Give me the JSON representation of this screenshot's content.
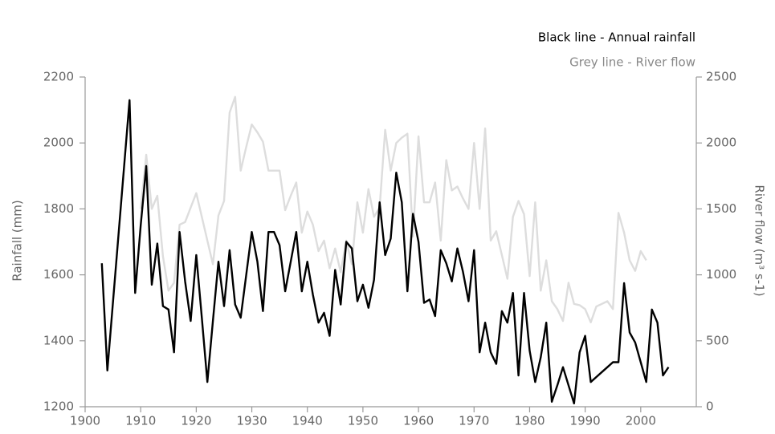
{
  "chart_data": {
    "type": "line",
    "legend_lines": [
      "Black line - Annual rainfall",
      "Grey line - River flow"
    ],
    "ylabel": "Rainfall (mm)",
    "y2label": "River flow (m³ s-1)",
    "x": [
      1903,
      1904,
      1905,
      1906,
      1907,
      1908,
      1909,
      1910,
      1911,
      1912,
      1913,
      1914,
      1915,
      1916,
      1917,
      1918,
      1919,
      1920,
      1921,
      1922,
      1923,
      1924,
      1925,
      1926,
      1927,
      1928,
      1929,
      1930,
      1931,
      1932,
      1933,
      1934,
      1935,
      1936,
      1937,
      1938,
      1939,
      1940,
      1941,
      1942,
      1943,
      1944,
      1945,
      1946,
      1947,
      1948,
      1949,
      1950,
      1951,
      1952,
      1953,
      1954,
      1955,
      1956,
      1957,
      1958,
      1959,
      1960,
      1961,
      1962,
      1963,
      1964,
      1965,
      1966,
      1967,
      1968,
      1969,
      1970,
      1971,
      1972,
      1973,
      1974,
      1975,
      1976,
      1977,
      1978,
      1979,
      1980,
      1981,
      1982,
      1983,
      1984,
      1985,
      1986,
      1987,
      1988,
      1989,
      1990,
      1991,
      1992,
      1993,
      1994,
      1995,
      1996,
      1997,
      1998,
      1999,
      2000,
      2001,
      2002,
      2003,
      2004,
      2005
    ],
    "series": [
      {
        "name": "River flow",
        "color": "#dddddd",
        "axis": "y2",
        "values": [
          null,
          null,
          null,
          null,
          null,
          null,
          null,
          1500,
          1910,
          1500,
          1600,
          1140,
          880,
          940,
          1380,
          1400,
          1510,
          1620,
          1440,
          1260,
          1080,
          1450,
          1560,
          2230,
          2350,
          1790,
          1970,
          2140,
          2080,
          2010,
          1790,
          1790,
          1790,
          1490,
          1600,
          1700,
          1320,
          1480,
          1380,
          1180,
          1260,
          1050,
          1200,
          1020,
          1260,
          1080,
          1550,
          1320,
          1650,
          1440,
          1510,
          2100,
          1790,
          2000,
          2040,
          2070,
          1290,
          2050,
          1550,
          1550,
          1700,
          1260,
          1870,
          1640,
          1670,
          1580,
          1500,
          2000,
          1500,
          2110,
          1260,
          1330,
          1150,
          970,
          1440,
          1560,
          1460,
          990,
          1550,
          880,
          1110,
          800,
          740,
          650,
          940,
          780,
          770,
          740,
          640,
          760,
          780,
          800,
          740,
          1470,
          1320,
          1110,
          1030,
          1180,
          1110,
          null,
          null,
          null,
          null
        ]
      },
      {
        "name": "Annual rainfall",
        "color": "#000000",
        "values": [
          1635,
          1310,
          1515,
          1720,
          1925,
          2130,
          1545,
          1750,
          1930,
          1570,
          1695,
          1505,
          1495,
          1365,
          1730,
          1580,
          1460,
          1660,
          1470,
          1275,
          1460,
          1640,
          1505,
          1675,
          1510,
          1470,
          1600,
          1730,
          1640,
          1490,
          1730,
          1730,
          1690,
          1550,
          1640,
          1730,
          1550,
          1640,
          1540,
          1455,
          1485,
          1415,
          1615,
          1510,
          1700,
          1680,
          1520,
          1570,
          1500,
          1585,
          1820,
          1660,
          1710,
          1910,
          1820,
          1550,
          1785,
          1700,
          1515,
          1525,
          1475,
          1675,
          1635,
          1580,
          1680,
          1610,
          1520,
          1675,
          1365,
          1455,
          1365,
          1330,
          1490,
          1455,
          1545,
          1295,
          1545,
          1370,
          1275,
          1350,
          1455,
          1215,
          1265,
          1320,
          1265,
          1210,
          1365,
          1415,
          1275,
          1290,
          1305,
          1320,
          1335,
          1335,
          1575,
          1425,
          1395,
          1335,
          1275,
          1495,
          1455,
          1295,
          1320
        ]
      }
    ],
    "xlim": [
      1900,
      2010
    ],
    "xticks": [
      1900,
      1910,
      1920,
      1930,
      1940,
      1950,
      1960,
      1970,
      1980,
      1990,
      2000
    ],
    "ylim": [
      1200,
      2200
    ],
    "yticks": [
      1200,
      1400,
      1600,
      1800,
      2000,
      2200
    ],
    "y2lim": [
      0,
      2500
    ],
    "y2ticks": [
      0,
      500,
      1000,
      1500,
      2000,
      2500
    ]
  }
}
